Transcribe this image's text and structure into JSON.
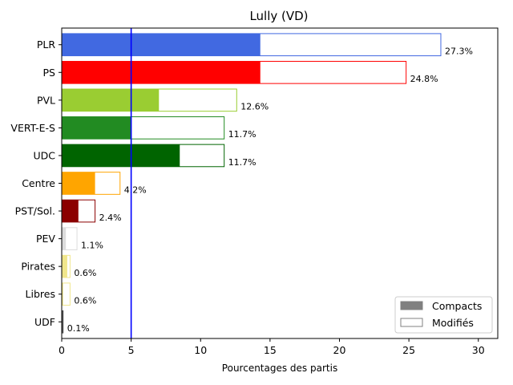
{
  "chart_data": {
    "type": "bar",
    "orientation": "horizontal",
    "title": "Lully (VD)",
    "xlabel": "Pourcentages des partis",
    "ylabel": "",
    "xlim": [
      0,
      31.4
    ],
    "xticks": [
      "0",
      "5",
      "10",
      "15",
      "20",
      "25",
      "30"
    ],
    "reference_line": {
      "x": 5,
      "color": "#0000ff"
    },
    "categories": [
      "PLR",
      "PS",
      "PVL",
      "VERT-E-S",
      "UDC",
      "Centre",
      "PST/Sol.",
      "PEV",
      "Pirates",
      "Libres",
      "UDF"
    ],
    "compact_values": [
      14.3,
      14.3,
      7.0,
      5.0,
      8.5,
      2.4,
      1.2,
      0.3,
      0.4,
      0.1,
      0.1
    ],
    "total_values": [
      27.3,
      24.8,
      12.6,
      11.7,
      11.7,
      4.2,
      2.4,
      1.1,
      0.6,
      0.6,
      0.1
    ],
    "value_labels": [
      "27.3%",
      "24.8%",
      "12.6%",
      "11.7%",
      "11.7%",
      "4.2%",
      "2.4%",
      "1.1%",
      "0.6%",
      "0.6%",
      "0.1%"
    ],
    "colors": [
      "#4169e1",
      "#ff0000",
      "#9acd32",
      "#228b22",
      "#006400",
      "#ffa500",
      "#8b0000",
      "#dcdcdc",
      "#f0e68c",
      "#f0e68c",
      "#555555"
    ],
    "legend": {
      "placement": "lower-right",
      "entries": [
        {
          "label": "Compacts",
          "color": "#808080",
          "style": "filled"
        },
        {
          "label": "Modifiés",
          "color": "#808080",
          "style": "outline"
        }
      ]
    }
  }
}
